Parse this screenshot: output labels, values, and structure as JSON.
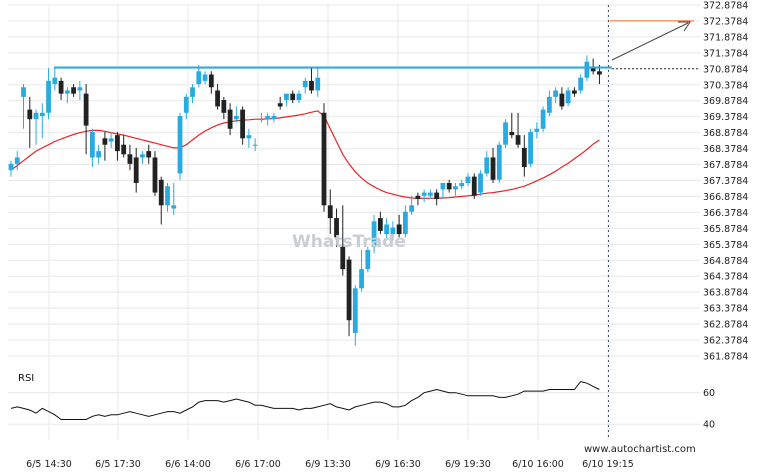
{
  "chart_data": {
    "type": "candlestick",
    "y_ticks": [
      "372.8784",
      "372.3784",
      "371.8784",
      "371.3784",
      "370.8784",
      "370.3784",
      "369.8784",
      "369.3784",
      "368.8784",
      "368.3784",
      "367.8784",
      "367.3784",
      "366.8784",
      "366.3784",
      "365.8784",
      "365.3784",
      "364.8784",
      "364.3784",
      "363.8784",
      "363.3784",
      "362.8784",
      "362.3784",
      "361.8784"
    ],
    "ylim": [
      361.8784,
      372.8784
    ],
    "x_ticks": [
      "6/5 14:30",
      "6/5 17:30",
      "6/6 14:00",
      "6/6 17:00",
      "6/9 13:30",
      "6/9 16:30",
      "6/9 19:30",
      "6/10 16:00",
      "6/10 19:15"
    ],
    "resistance_level": 370.92,
    "target_level": 372.38,
    "current_price_level": 370.88,
    "candles": [
      {
        "o": 367.7,
        "h": 368.0,
        "l": 367.5,
        "c": 367.9
      },
      {
        "o": 367.9,
        "h": 368.3,
        "l": 367.7,
        "c": 368.1
      },
      {
        "o": 370.0,
        "h": 370.4,
        "l": 369.0,
        "c": 370.3
      },
      {
        "o": 369.6,
        "h": 370.0,
        "l": 368.4,
        "c": 369.3
      },
      {
        "o": 369.3,
        "h": 369.6,
        "l": 368.5,
        "c": 369.5
      },
      {
        "o": 369.4,
        "h": 369.8,
        "l": 368.7,
        "c": 369.5
      },
      {
        "o": 369.5,
        "h": 370.9,
        "l": 369.3,
        "c": 370.5
      },
      {
        "o": 370.4,
        "h": 370.9,
        "l": 370.2,
        "c": 370.6
      },
      {
        "o": 370.5,
        "h": 370.6,
        "l": 369.9,
        "c": 370.1
      },
      {
        "o": 370.1,
        "h": 370.3,
        "l": 369.8,
        "c": 370.2
      },
      {
        "o": 370.3,
        "h": 370.4,
        "l": 370.0,
        "c": 370.1
      },
      {
        "o": 370.2,
        "h": 370.5,
        "l": 369.9,
        "c": 370.3
      },
      {
        "o": 370.1,
        "h": 370.4,
        "l": 368.2,
        "c": 369.1
      },
      {
        "o": 368.1,
        "h": 369.0,
        "l": 367.8,
        "c": 368.9
      },
      {
        "o": 368.1,
        "h": 368.5,
        "l": 367.9,
        "c": 368.3
      },
      {
        "o": 368.7,
        "h": 368.9,
        "l": 368.0,
        "c": 368.5
      },
      {
        "o": 368.6,
        "h": 368.9,
        "l": 368.4,
        "c": 368.7
      },
      {
        "o": 368.8,
        "h": 368.9,
        "l": 368.0,
        "c": 368.3
      },
      {
        "o": 368.5,
        "h": 368.8,
        "l": 368.1,
        "c": 368.2
      },
      {
        "o": 368.2,
        "h": 368.5,
        "l": 367.7,
        "c": 367.9
      },
      {
        "o": 368.1,
        "h": 368.4,
        "l": 367.0,
        "c": 367.3
      },
      {
        "o": 368.1,
        "h": 368.3,
        "l": 367.9,
        "c": 368.2
      },
      {
        "o": 368.3,
        "h": 368.5,
        "l": 367.9,
        "c": 368.1
      },
      {
        "o": 368.1,
        "h": 368.3,
        "l": 366.9,
        "c": 367.0
      },
      {
        "o": 367.4,
        "h": 367.5,
        "l": 366.0,
        "c": 366.6
      },
      {
        "o": 366.6,
        "h": 367.3,
        "l": 366.4,
        "c": 367.2
      },
      {
        "o": 366.5,
        "h": 367.3,
        "l": 366.3,
        "c": 366.6
      },
      {
        "o": 367.6,
        "h": 369.5,
        "l": 367.4,
        "c": 369.4
      },
      {
        "o": 369.5,
        "h": 370.1,
        "l": 369.3,
        "c": 370.0
      },
      {
        "o": 370.0,
        "h": 370.4,
        "l": 369.8,
        "c": 370.3
      },
      {
        "o": 370.4,
        "h": 371.0,
        "l": 370.3,
        "c": 370.8
      },
      {
        "o": 370.5,
        "h": 370.8,
        "l": 370.4,
        "c": 370.7
      },
      {
        "o": 370.7,
        "h": 370.8,
        "l": 370.1,
        "c": 370.3
      },
      {
        "o": 370.2,
        "h": 370.4,
        "l": 369.6,
        "c": 369.7
      },
      {
        "o": 369.9,
        "h": 370.0,
        "l": 369.3,
        "c": 369.5
      },
      {
        "o": 369.6,
        "h": 369.8,
        "l": 368.8,
        "c": 369.0
      },
      {
        "o": 369.3,
        "h": 369.7,
        "l": 369.2,
        "c": 369.4
      },
      {
        "o": 369.6,
        "h": 369.7,
        "l": 368.5,
        "c": 368.7
      },
      {
        "o": 368.7,
        "h": 369.0,
        "l": 368.4,
        "c": 368.8
      },
      {
        "o": 368.5,
        "h": 368.7,
        "l": 368.3,
        "c": 368.5
      },
      {
        "o": 369.3,
        "h": 369.5,
        "l": 369.2,
        "c": 369.3
      },
      {
        "o": 369.3,
        "h": 369.5,
        "l": 369.1,
        "c": 369.4
      },
      {
        "o": 369.3,
        "h": 369.5,
        "l": 369.2,
        "c": 369.4
      },
      {
        "o": 369.8,
        "h": 370.0,
        "l": 369.6,
        "c": 369.7
      },
      {
        "o": 369.9,
        "h": 370.1,
        "l": 369.7,
        "c": 370.1
      },
      {
        "o": 370.1,
        "h": 370.2,
        "l": 369.8,
        "c": 369.9
      },
      {
        "o": 369.9,
        "h": 370.2,
        "l": 369.8,
        "c": 370.1
      },
      {
        "o": 370.3,
        "h": 370.6,
        "l": 370.1,
        "c": 370.5
      },
      {
        "o": 370.5,
        "h": 370.9,
        "l": 370.1,
        "c": 370.2
      },
      {
        "o": 370.2,
        "h": 370.9,
        "l": 370.0,
        "c": 370.6
      },
      {
        "o": 369.5,
        "h": 369.8,
        "l": 366.4,
        "c": 366.6
      },
      {
        "o": 366.6,
        "h": 367.1,
        "l": 365.7,
        "c": 366.2
      },
      {
        "o": 366.2,
        "h": 366.5,
        "l": 365.3,
        "c": 365.6
      },
      {
        "o": 365.3,
        "h": 366.6,
        "l": 364.4,
        "c": 364.6
      },
      {
        "o": 364.9,
        "h": 365.0,
        "l": 362.5,
        "c": 363.0
      },
      {
        "o": 362.6,
        "h": 364.1,
        "l": 362.2,
        "c": 364.0
      },
      {
        "o": 364.0,
        "h": 365.2,
        "l": 363.9,
        "c": 364.6
      },
      {
        "o": 364.6,
        "h": 365.3,
        "l": 364.5,
        "c": 365.2
      },
      {
        "o": 365.3,
        "h": 366.3,
        "l": 365.1,
        "c": 366.1
      },
      {
        "o": 366.2,
        "h": 366.4,
        "l": 365.7,
        "c": 365.8
      },
      {
        "o": 365.7,
        "h": 366.2,
        "l": 365.5,
        "c": 366.0
      },
      {
        "o": 365.7,
        "h": 366.1,
        "l": 365.5,
        "c": 365.9
      },
      {
        "o": 366.0,
        "h": 366.3,
        "l": 365.6,
        "c": 365.7
      },
      {
        "o": 365.7,
        "h": 366.6,
        "l": 365.6,
        "c": 366.4
      },
      {
        "o": 366.4,
        "h": 366.9,
        "l": 366.3,
        "c": 366.6
      },
      {
        "o": 366.9,
        "h": 367.0,
        "l": 366.6,
        "c": 366.8
      },
      {
        "o": 366.9,
        "h": 367.1,
        "l": 366.7,
        "c": 367.0
      },
      {
        "o": 366.9,
        "h": 367.1,
        "l": 366.8,
        "c": 367.0
      },
      {
        "o": 367.0,
        "h": 367.1,
        "l": 366.6,
        "c": 366.8
      },
      {
        "o": 367.1,
        "h": 367.3,
        "l": 366.8,
        "c": 367.3
      },
      {
        "o": 367.3,
        "h": 367.4,
        "l": 367.0,
        "c": 367.1
      },
      {
        "o": 367.1,
        "h": 367.3,
        "l": 366.9,
        "c": 367.2
      },
      {
        "o": 367.2,
        "h": 367.4,
        "l": 367.1,
        "c": 367.3
      },
      {
        "o": 367.3,
        "h": 367.6,
        "l": 367.2,
        "c": 367.5
      },
      {
        "o": 367.5,
        "h": 367.6,
        "l": 366.8,
        "c": 366.9
      },
      {
        "o": 367.0,
        "h": 367.7,
        "l": 366.9,
        "c": 367.6
      },
      {
        "o": 367.6,
        "h": 368.3,
        "l": 367.5,
        "c": 368.1
      },
      {
        "o": 368.1,
        "h": 368.4,
        "l": 367.3,
        "c": 367.4
      },
      {
        "o": 367.4,
        "h": 368.6,
        "l": 367.3,
        "c": 368.5
      },
      {
        "o": 368.5,
        "h": 369.3,
        "l": 368.4,
        "c": 369.2
      },
      {
        "o": 368.9,
        "h": 369.5,
        "l": 368.7,
        "c": 368.8
      },
      {
        "o": 368.8,
        "h": 369.5,
        "l": 368.4,
        "c": 368.5
      },
      {
        "o": 368.4,
        "h": 368.8,
        "l": 367.5,
        "c": 367.8
      },
      {
        "o": 367.9,
        "h": 369.0,
        "l": 367.8,
        "c": 368.9
      },
      {
        "o": 368.9,
        "h": 369.2,
        "l": 368.7,
        "c": 369.0
      },
      {
        "o": 369.0,
        "h": 369.7,
        "l": 368.9,
        "c": 369.6
      },
      {
        "o": 369.5,
        "h": 370.2,
        "l": 369.4,
        "c": 370.0
      },
      {
        "o": 370.0,
        "h": 370.3,
        "l": 369.8,
        "c": 370.2
      },
      {
        "o": 370.1,
        "h": 370.3,
        "l": 369.6,
        "c": 369.7
      },
      {
        "o": 369.8,
        "h": 370.3,
        "l": 369.7,
        "c": 370.2
      },
      {
        "o": 370.2,
        "h": 370.3,
        "l": 370.0,
        "c": 370.1
      },
      {
        "o": 370.2,
        "h": 370.7,
        "l": 370.1,
        "c": 370.6
      },
      {
        "o": 370.6,
        "h": 371.3,
        "l": 370.5,
        "c": 371.1
      },
      {
        "o": 370.9,
        "h": 371.2,
        "l": 370.7,
        "c": 370.8
      },
      {
        "o": 370.8,
        "h": 371.0,
        "l": 370.4,
        "c": 370.7
      }
    ],
    "moving_average": [
      367.7,
      367.85,
      368.0,
      368.15,
      368.3,
      368.4,
      368.5,
      368.6,
      368.68,
      368.75,
      368.82,
      368.88,
      368.92,
      368.95,
      368.95,
      368.92,
      368.88,
      368.84,
      368.8,
      368.75,
      368.7,
      368.65,
      368.6,
      368.55,
      368.5,
      368.45,
      368.4,
      368.4,
      368.5,
      368.65,
      368.8,
      368.93,
      369.03,
      369.12,
      369.18,
      369.22,
      369.25,
      369.27,
      369.28,
      369.3,
      369.3,
      369.31,
      369.32,
      369.34,
      369.37,
      369.4,
      369.43,
      369.47,
      369.52,
      369.56,
      369.4,
      369.0,
      368.6,
      368.2,
      367.9,
      367.65,
      367.45,
      367.3,
      367.18,
      367.08,
      367.0,
      366.95,
      366.9,
      366.86,
      366.83,
      366.82,
      366.82,
      366.82,
      366.82,
      366.83,
      366.84,
      366.86,
      366.88,
      366.9,
      366.92,
      366.95,
      366.98,
      367.0,
      367.03,
      367.06,
      367.1,
      367.15,
      367.2,
      367.28,
      367.37,
      367.46,
      367.56,
      367.67,
      367.8,
      367.92,
      368.06,
      368.2,
      368.35,
      368.52,
      368.65
    ],
    "rsi_ticks": [
      "60",
      "40"
    ],
    "rsi_ylim": [
      30,
      75
    ],
    "rsi": [
      50,
      51,
      50,
      49,
      47,
      50,
      48,
      46,
      43,
      43,
      43,
      43,
      43,
      45,
      46,
      45,
      46,
      46,
      47,
      48,
      47,
      46,
      45,
      46,
      47,
      48,
      48,
      47,
      49,
      51,
      54,
      55,
      55,
      55,
      54,
      55,
      56,
      55,
      54,
      52,
      52,
      51,
      50,
      50,
      50,
      50,
      49,
      50,
      50,
      51,
      52,
      53,
      51,
      50,
      49,
      51,
      52,
      53,
      54,
      54,
      53,
      51,
      51,
      52,
      55,
      57,
      60,
      61,
      62,
      61,
      60,
      60,
      59,
      58,
      58,
      58,
      58,
      58,
      57,
      57,
      58,
      59,
      61,
      61,
      61,
      61,
      62,
      62,
      62,
      62,
      62,
      67,
      66,
      64,
      62
    ],
    "rsi_title": "RSI"
  },
  "watermark": "WhatsTrade",
  "footer_url": "www.autochartist.com",
  "colors": {
    "bull": "#29abe2",
    "bear": "#222222",
    "moving_average": "#e8262a",
    "resistance": "#29abe2",
    "target": "#f26522",
    "grid": "#e8e8e8"
  }
}
